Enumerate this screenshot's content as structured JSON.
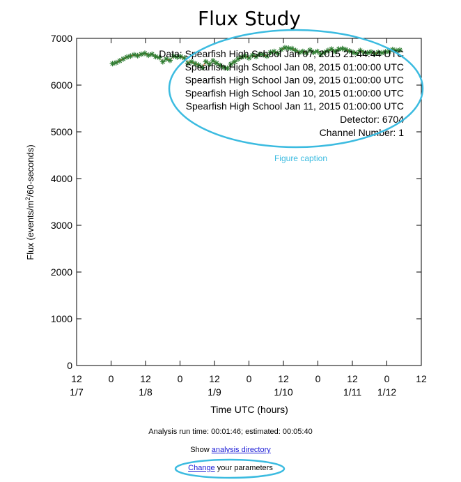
{
  "chart_data": {
    "type": "line",
    "title": "Flux Study",
    "xlabel": "Time UTC (hours)",
    "ylabel": "Flux (events/m²/60-seconds)",
    "ylim": [
      0,
      7000
    ],
    "xlim": [
      -36,
      60
    ],
    "y_ticks": [
      "0",
      "1000",
      "2000",
      "3000",
      "4000",
      "5000",
      "6000",
      "7000"
    ],
    "x_tick_hours": [
      "12",
      "0",
      "12",
      "0",
      "12",
      "0",
      "12",
      "0",
      "12",
      "0",
      "12"
    ],
    "x_tick_dates": [
      "1/7",
      "",
      "1/8",
      "",
      "1/9",
      "",
      "1/10",
      "",
      "1/11",
      "1/12",
      ""
    ],
    "grid": false,
    "marker_color": "#2e7d32",
    "line_color": "#e0531d",
    "series": [
      {
        "x": [
          -26,
          -25,
          -24,
          -23,
          -22,
          -21,
          -20,
          -19,
          -18,
          -17,
          -16,
          -15,
          -14,
          -13,
          -12,
          -11,
          -10,
          -9,
          -8,
          -7,
          -6,
          -5,
          -4,
          -3,
          -2,
          -1,
          0,
          1,
          2,
          3,
          4,
          5,
          6,
          7,
          8,
          9,
          10,
          11,
          12,
          13,
          14,
          15,
          16,
          17,
          18,
          19,
          20,
          21,
          22,
          23,
          24,
          25,
          26,
          27,
          28,
          29,
          30,
          31,
          32,
          33,
          34,
          35,
          36,
          37,
          38,
          39,
          40,
          41,
          42,
          43,
          44,
          45,
          46,
          47,
          48,
          49,
          50,
          51,
          52,
          53,
          54
        ],
        "y": [
          6460,
          6480,
          6520,
          6560,
          6600,
          6620,
          6650,
          6630,
          6660,
          6680,
          6640,
          6660,
          6610,
          6590,
          6500,
          6560,
          6530,
          6620,
          6600,
          6610,
          6580,
          6470,
          6500,
          6460,
          6430,
          6380,
          6500,
          6450,
          6520,
          6470,
          6420,
          6380,
          6360,
          6450,
          6500,
          6560,
          6600,
          6620,
          6580,
          6640,
          6610,
          6660,
          6650,
          6620,
          6700,
          6720,
          6680,
          6760,
          6800,
          6790,
          6780,
          6740,
          6700,
          6720,
          6690,
          6750,
          6700,
          6720,
          6660,
          6700,
          6740,
          6770,
          6720,
          6770,
          6780,
          6760,
          6730,
          6700,
          6680,
          6740,
          6700,
          6690,
          6710,
          6670,
          6700,
          6690,
          6710,
          6720,
          6760,
          6740,
          6750
        ]
      }
    ],
    "caption_lines": [
      "Data: Spearfish High School Jan 07, 2015 21:44:44 UTC",
      "Spearfish High School Jan 08, 2015 01:00:00 UTC",
      "Spearfish High School Jan 09, 2015 01:00:00 UTC",
      "Spearfish High School Jan 10, 2015 01:00:00 UTC",
      "Spearfish High School Jan 11, 2015 01:00:00 UTC",
      "Detector: 6704",
      "Channel Number: 1"
    ]
  },
  "annotation": {
    "figure_caption_label": "Figure caption",
    "color": "#3bbbe0"
  },
  "footer": {
    "runtime_text": "Analysis run time: 00:01:46; estimated: 00:05:40",
    "show_prefix": "Show ",
    "analysis_link": "analysis directory",
    "change_link": "Change",
    "change_suffix": " your parameters"
  }
}
